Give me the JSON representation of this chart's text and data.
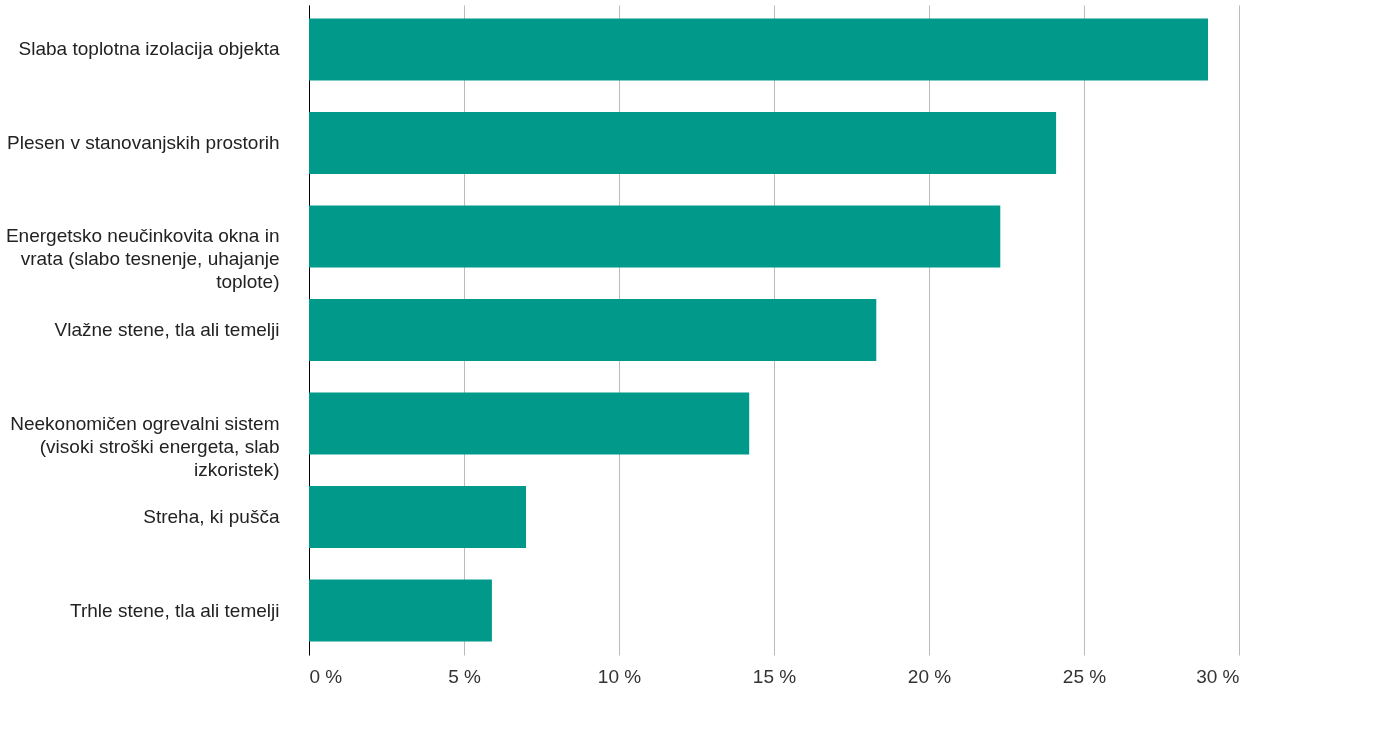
{
  "chart_data": {
    "type": "bar",
    "orientation": "horizontal",
    "categories": [
      "Slaba toplotna izolacija objekta",
      "Plesen v stanovanjskih prostorih",
      "Energetsko neučinkovita okna in vrata (slabo tesnenje, uhajanje toplote)",
      "Vlažne stene, tla ali temelji",
      "Neekonomičen ogrevalni sistem (visoki stroški energeta, slab izkoristek)",
      "Streha, ki pušča",
      "Trhle stene, tla ali temelji"
    ],
    "values": [
      29.0,
      24.1,
      22.3,
      18.3,
      14.2,
      7.0,
      5.9
    ],
    "color": "#00998a",
    "xlim": [
      0,
      30
    ],
    "xticks": [
      {
        "value": 0,
        "label": "0 %"
      },
      {
        "value": 5,
        "label": "5 %"
      },
      {
        "value": 10,
        "label": "10 %"
      },
      {
        "value": 15,
        "label": "15 %"
      },
      {
        "value": 20,
        "label": "20 %"
      },
      {
        "value": 25,
        "label": "25 %"
      },
      {
        "value": 30,
        "label": "30 %"
      }
    ],
    "grid": "x"
  }
}
